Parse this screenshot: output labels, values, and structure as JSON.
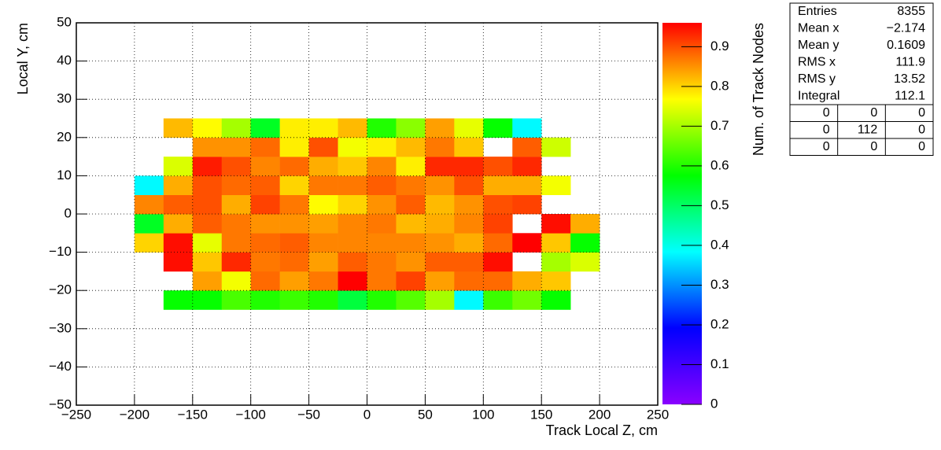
{
  "chart_data": {
    "type": "heatmap",
    "x_label": "Track Local Z, cm",
    "y_label": "Local Y, cm",
    "z_label": "Num. of Track Nodes",
    "x_bins": [
      -200,
      -175,
      -150,
      -125,
      -100,
      -75,
      -50,
      -25,
      0,
      25,
      50,
      75,
      100,
      125,
      150,
      175,
      200
    ],
    "y_bins": [
      -25,
      -20,
      -15,
      -10,
      -5,
      0,
      5,
      10,
      15,
      20,
      25
    ],
    "z": [
      [
        null,
        0.58,
        0.58,
        0.63,
        0.6,
        0.62,
        0.6,
        0.53,
        0.6,
        0.64,
        0.7,
        0.38,
        0.62,
        0.66,
        0.58,
        null
      ],
      [
        null,
        null,
        0.84,
        0.76,
        0.88,
        0.84,
        0.87,
        0.96,
        0.87,
        0.91,
        0.84,
        0.88,
        0.88,
        0.83,
        0.81,
        null
      ],
      [
        null,
        0.95,
        0.81,
        0.93,
        0.87,
        0.88,
        0.84,
        0.89,
        0.87,
        0.85,
        0.89,
        0.89,
        0.95,
        null,
        0.7,
        0.74
      ],
      [
        0.8,
        0.95,
        0.75,
        0.87,
        0.88,
        0.89,
        0.86,
        0.86,
        0.86,
        0.86,
        0.85,
        0.83,
        0.88,
        0.96,
        0.81,
        0.58
      ],
      [
        0.55,
        0.83,
        0.89,
        0.87,
        0.85,
        0.85,
        0.84,
        0.86,
        0.87,
        0.82,
        0.83,
        0.86,
        0.91,
        null,
        0.95,
        0.83
      ],
      [
        0.86,
        0.89,
        0.9,
        0.83,
        0.91,
        0.87,
        0.77,
        0.8,
        0.85,
        0.89,
        0.82,
        0.85,
        0.9,
        0.91,
        null,
        null
      ],
      [
        0.38,
        0.83,
        0.9,
        0.88,
        0.89,
        0.8,
        0.87,
        0.87,
        0.89,
        0.87,
        0.85,
        0.9,
        0.83,
        0.83,
        0.76,
        null
      ],
      [
        null,
        0.74,
        0.94,
        0.9,
        0.86,
        0.88,
        0.83,
        0.81,
        0.86,
        0.78,
        0.93,
        0.93,
        0.9,
        0.93,
        null,
        null
      ],
      [
        null,
        null,
        0.85,
        0.85,
        0.88,
        0.78,
        0.9,
        0.76,
        0.78,
        0.82,
        0.87,
        0.81,
        null,
        0.89,
        0.73,
        null
      ],
      [
        null,
        0.82,
        0.77,
        0.7,
        0.55,
        0.78,
        0.78,
        0.82,
        0.6,
        0.68,
        0.84,
        0.75,
        0.58,
        0.38,
        null,
        null
      ]
    ],
    "colorscale": [
      "#8a00ff",
      "#0000ff",
      "#00ffff",
      "#00ff00",
      "#ffff00",
      "#ff0000"
    ],
    "xlim": [
      -250,
      250
    ],
    "ylim": [
      -50,
      50
    ],
    "zlim": [
      0,
      0.96
    ],
    "xticks": [
      {
        "value": -250,
        "label": "−250"
      },
      {
        "value": -200,
        "label": "−200"
      },
      {
        "value": -150,
        "label": "−150"
      },
      {
        "value": -100,
        "label": "−100"
      },
      {
        "value": -50,
        "label": "−50"
      },
      0,
      50,
      100,
      150,
      200,
      250
    ],
    "yticks": [
      {
        "value": -50,
        "label": "−50"
      },
      {
        "value": -40,
        "label": "−40"
      },
      {
        "value": -30,
        "label": "−30"
      },
      {
        "value": -20,
        "label": "−20"
      },
      {
        "value": -10,
        "label": "−10"
      },
      0,
      10,
      20,
      30,
      40,
      50
    ],
    "zticks": [
      0,
      0.1,
      0.2,
      0.3,
      0.4,
      0.5,
      0.6,
      0.7,
      0.8,
      0.9
    ],
    "grid": true,
    "stats": [
      {
        "name": "Entries",
        "value": "8355"
      },
      {
        "name": "Mean x",
        "value": "−2.174"
      },
      {
        "name": "Mean y",
        "value": "0.1609"
      },
      {
        "name": "RMS x",
        "value": "111.9"
      },
      {
        "name": "RMS y",
        "value": "13.52"
      },
      {
        "name": "Integral",
        "value": "112.1"
      }
    ],
    "overflow": [
      [
        "0",
        "0",
        "0"
      ],
      [
        "0",
        "112",
        "0"
      ],
      [
        "0",
        "0",
        "0"
      ]
    ]
  }
}
